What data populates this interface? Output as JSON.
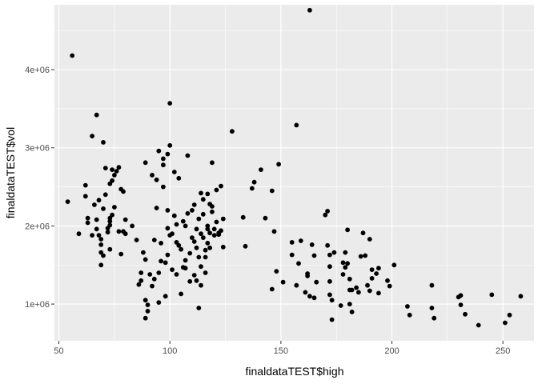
{
  "chart_data": {
    "type": "scatter",
    "title": "",
    "xlabel": "finaldataTEST$high",
    "ylabel": "finaldataTEST$vol",
    "xlim": [
      48,
      264
    ],
    "ylim": [
      530000,
      4830000
    ],
    "x_ticks": [
      50,
      100,
      150,
      200,
      250
    ],
    "x_tick_labels": [
      "50",
      "100",
      "150",
      "200",
      "250"
    ],
    "y_ticks": [
      1000000,
      2000000,
      3000000,
      4000000
    ],
    "y_tick_labels": [
      "1e+06",
      "2e+06",
      "3e+06",
      "4e+06"
    ],
    "grid": true,
    "legend": "none",
    "colors": {
      "panel": "#ebebeb",
      "grid_major": "#ffffff",
      "point": "#000000",
      "tick": "#333333"
    },
    "points": [
      [
        56,
        4180000
      ],
      [
        54,
        2310000
      ],
      [
        59,
        1900000
      ],
      [
        62,
        2520000
      ],
      [
        62,
        2380000
      ],
      [
        63,
        2100000
      ],
      [
        63,
        2040000
      ],
      [
        65,
        1880000
      ],
      [
        65,
        3150000
      ],
      [
        66,
        2270000
      ],
      [
        67,
        3420000
      ],
      [
        68,
        2330000
      ],
      [
        67,
        2080000
      ],
      [
        67,
        1960000
      ],
      [
        68,
        1880000
      ],
      [
        69,
        1830000
      ],
      [
        69,
        1760000
      ],
      [
        69,
        1660000
      ],
      [
        70,
        1620000
      ],
      [
        69,
        1500000
      ],
      [
        70,
        3070000
      ],
      [
        70,
        2220000
      ],
      [
        71,
        2400000
      ],
      [
        71,
        2740000
      ],
      [
        72,
        1920000
      ],
      [
        72,
        1970000
      ],
      [
        73,
        1700000
      ],
      [
        73,
        2010000
      ],
      [
        73,
        2060000
      ],
      [
        73,
        2100000
      ],
      [
        74,
        2140000
      ],
      [
        73,
        2540000
      ],
      [
        74,
        2580000
      ],
      [
        74,
        2720000
      ],
      [
        75,
        2650000
      ],
      [
        75,
        2240000
      ],
      [
        76,
        2700000
      ],
      [
        77,
        2750000
      ],
      [
        77,
        1930000
      ],
      [
        78,
        2470000
      ],
      [
        78,
        1640000
      ],
      [
        79,
        1930000
      ],
      [
        79,
        2440000
      ],
      [
        80,
        1900000
      ],
      [
        80,
        2080000
      ],
      [
        83,
        2000000
      ],
      [
        85,
        1820000
      ],
      [
        86,
        1250000
      ],
      [
        87,
        1400000
      ],
      [
        87,
        1300000
      ],
      [
        88,
        1660000
      ],
      [
        89,
        2810000
      ],
      [
        89,
        1570000
      ],
      [
        89,
        1050000
      ],
      [
        89,
        820000
      ],
      [
        90,
        990000
      ],
      [
        90,
        910000
      ],
      [
        91,
        1380000
      ],
      [
        92,
        1230000
      ],
      [
        92,
        2650000
      ],
      [
        93,
        1320000
      ],
      [
        93,
        1820000
      ],
      [
        94,
        2590000
      ],
      [
        94,
        2230000
      ],
      [
        95,
        2960000
      ],
      [
        95,
        1020000
      ],
      [
        95,
        1400000
      ],
      [
        96,
        1780000
      ],
      [
        96,
        1550000
      ],
      [
        97,
        2860000
      ],
      [
        97,
        2780000
      ],
      [
        97,
        2500000
      ],
      [
        98,
        1530000
      ],
      [
        98,
        1100000
      ],
      [
        99,
        2920000
      ],
      [
        99,
        2200000
      ],
      [
        99,
        1970000
      ],
      [
        99,
        1630000
      ],
      [
        100,
        3570000
      ],
      [
        100,
        3030000
      ],
      [
        100,
        1880000
      ],
      [
        101,
        1900000
      ],
      [
        101,
        1440000
      ],
      [
        102,
        2690000
      ],
      [
        102,
        2130000
      ],
      [
        103,
        2020000
      ],
      [
        103,
        1790000
      ],
      [
        103,
        1380000
      ],
      [
        104,
        2610000
      ],
      [
        104,
        1750000
      ],
      [
        105,
        1700000
      ],
      [
        105,
        1130000
      ],
      [
        106,
        2060000
      ],
      [
        106,
        1470000
      ],
      [
        107,
        2000000
      ],
      [
        107,
        1560000
      ],
      [
        107,
        1460000
      ],
      [
        108,
        2900000
      ],
      [
        108,
        2160000
      ],
      [
        109,
        1650000
      ],
      [
        109,
        1290000
      ],
      [
        110,
        2200000
      ],
      [
        110,
        1850000
      ],
      [
        111,
        2270000
      ],
      [
        111,
        1800000
      ],
      [
        111,
        1370000
      ],
      [
        112,
        1960000
      ],
      [
        112,
        1720000
      ],
      [
        112,
        1300000
      ],
      [
        113,
        2090000
      ],
      [
        113,
        1600000
      ],
      [
        113,
        950000
      ],
      [
        114,
        2420000
      ],
      [
        114,
        1900000
      ],
      [
        114,
        1480000
      ],
      [
        114,
        1240000
      ],
      [
        115,
        2340000
      ],
      [
        115,
        2150000
      ],
      [
        115,
        1850000
      ],
      [
        116,
        1690000
      ],
      [
        116,
        1600000
      ],
      [
        116,
        1400000
      ],
      [
        117,
        2410000
      ],
      [
        117,
        2000000
      ],
      [
        117,
        1960000
      ],
      [
        117,
        1780000
      ],
      [
        118,
        2280000
      ],
      [
        118,
        1910000
      ],
      [
        118,
        1720000
      ],
      [
        119,
        2810000
      ],
      [
        119,
        2250000
      ],
      [
        119,
        2180000
      ],
      [
        120,
        1960000
      ],
      [
        120,
        1880000
      ],
      [
        121,
        2460000
      ],
      [
        121,
        2050000
      ],
      [
        122,
        1910000
      ],
      [
        122,
        1890000
      ],
      [
        123,
        2510000
      ],
      [
        123,
        1940000
      ],
      [
        124,
        1730000
      ],
      [
        124,
        2090000
      ],
      [
        128,
        3210000
      ],
      [
        133,
        2110000
      ],
      [
        134,
        1740000
      ],
      [
        137,
        2480000
      ],
      [
        138,
        2560000
      ],
      [
        141,
        2720000
      ],
      [
        143,
        2100000
      ],
      [
        146,
        2450000
      ],
      [
        146,
        1190000
      ],
      [
        147,
        1930000
      ],
      [
        148,
        1420000
      ],
      [
        149,
        2790000
      ],
      [
        151,
        1280000
      ],
      [
        155,
        1630000
      ],
      [
        155,
        1790000
      ],
      [
        157,
        1240000
      ],
      [
        157,
        3290000
      ],
      [
        158,
        1520000
      ],
      [
        159,
        1810000
      ],
      [
        161,
        1150000
      ],
      [
        162,
        1360000
      ],
      [
        162,
        1390000
      ],
      [
        163,
        1100000
      ],
      [
        163,
        4760000
      ],
      [
        164,
        1760000
      ],
      [
        165,
        1620000
      ],
      [
        165,
        1080000
      ],
      [
        166,
        1280000
      ],
      [
        170,
        2140000
      ],
      [
        171,
        2190000
      ],
      [
        171,
        1750000
      ],
      [
        172,
        1630000
      ],
      [
        172,
        1480000
      ],
      [
        172,
        1290000
      ],
      [
        172,
        1120000
      ],
      [
        173,
        1050000
      ],
      [
        173,
        800000
      ],
      [
        174,
        1660000
      ],
      [
        177,
        980000
      ],
      [
        178,
        1530000
      ],
      [
        178,
        1380000
      ],
      [
        179,
        1470000
      ],
      [
        179,
        1660000
      ],
      [
        180,
        1950000
      ],
      [
        180,
        1520000
      ],
      [
        181,
        1180000
      ],
      [
        181,
        1320000
      ],
      [
        181,
        1000000
      ],
      [
        182,
        1180000
      ],
      [
        182,
        900000
      ],
      [
        184,
        1210000
      ],
      [
        185,
        1150000
      ],
      [
        186,
        1610000
      ],
      [
        187,
        1910000
      ],
      [
        188,
        1620000
      ],
      [
        189,
        1240000
      ],
      [
        190,
        1830000
      ],
      [
        190,
        1170000
      ],
      [
        191,
        1330000
      ],
      [
        191,
        1440000
      ],
      [
        193,
        1390000
      ],
      [
        194,
        1140000
      ],
      [
        194,
        1460000
      ],
      [
        198,
        1300000
      ],
      [
        199,
        1230000
      ],
      [
        201,
        1500000
      ],
      [
        207,
        970000
      ],
      [
        208,
        860000
      ],
      [
        218,
        1240000
      ],
      [
        218,
        950000
      ],
      [
        219,
        820000
      ],
      [
        230,
        1090000
      ],
      [
        231,
        990000
      ],
      [
        231,
        1110000
      ],
      [
        233,
        870000
      ],
      [
        239,
        730000
      ],
      [
        245,
        1120000
      ],
      [
        251,
        760000
      ],
      [
        253,
        860000
      ],
      [
        258,
        1100000
      ]
    ]
  }
}
